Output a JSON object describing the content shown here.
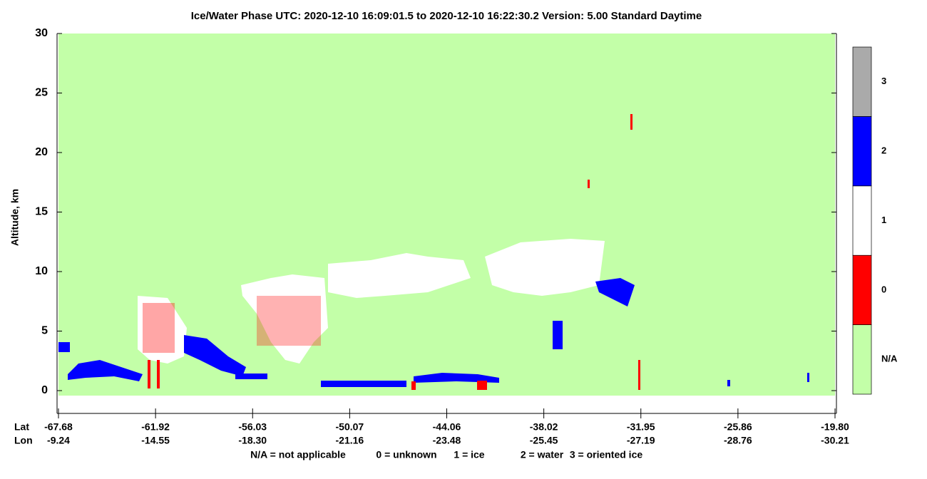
{
  "chart_data": {
    "type": "curtain",
    "title": "Ice/Water Phase    UTC:  2020-12-10   16:09:01.5  to  2020-12-10   16:22:30.2    Version: 5.00  Standard Daytime",
    "y_label": "Altitude, km",
    "ylim": [
      -2,
      30
    ],
    "yticks": [
      0,
      5,
      10,
      15,
      20,
      25,
      30
    ],
    "x_row_labels": [
      "Lat",
      "Lon"
    ],
    "lat_labels": [
      "-67.68",
      "-61.92",
      "-56.03",
      "-50.07",
      "-44.06",
      "-38.02",
      "-31.95",
      "-25.86",
      "-19.80"
    ],
    "lon_labels": [
      "-9.24",
      "-14.55",
      "-18.30",
      "-21.16",
      "-23.48",
      "-25.45",
      "-27.19",
      "-28.76",
      "-30.21"
    ],
    "colorbar": {
      "labels": [
        "N/A",
        "0",
        "1",
        "2",
        "3"
      ],
      "colors": [
        "#c3ffa8",
        "#ff0000",
        "#ffffff",
        "#0000ff",
        "#aaaaaa"
      ]
    },
    "legend_note": [
      "N/A = not applicable",
      "0 = unknown",
      "1 = ice",
      "2 = water",
      "3 = oriented ice"
    ]
  }
}
